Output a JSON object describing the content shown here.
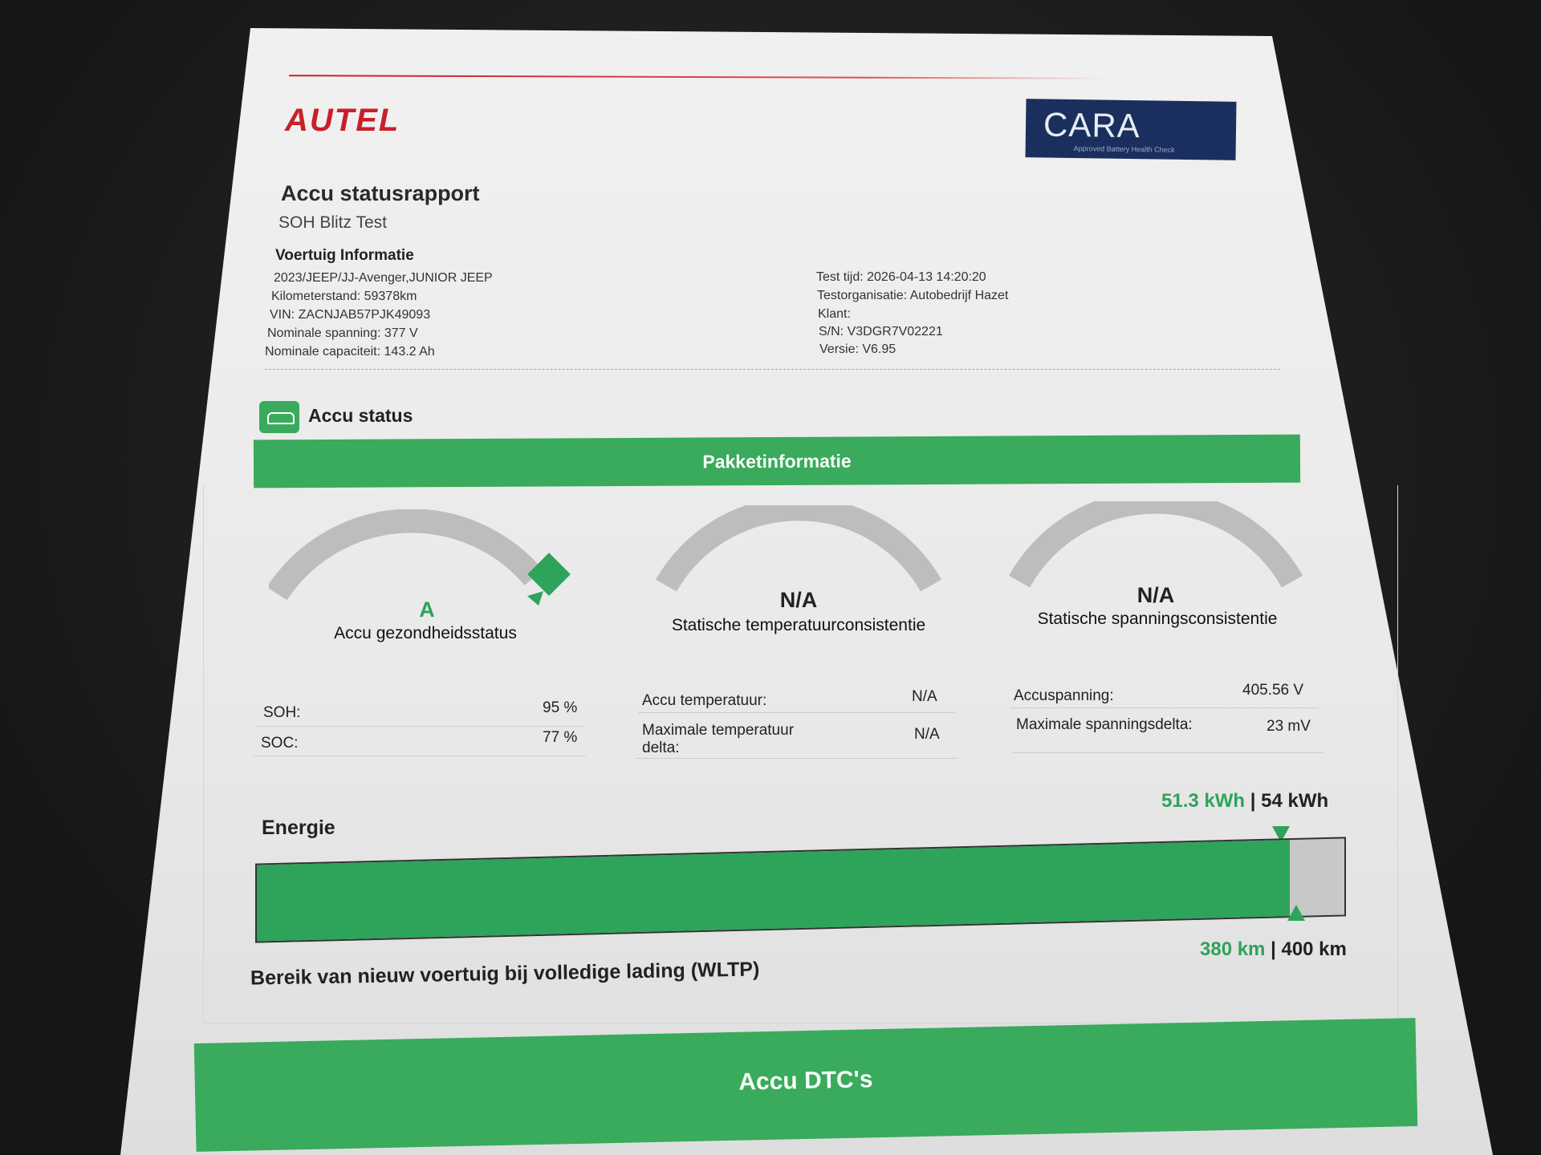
{
  "header": {
    "brand": "AUTEL",
    "badge_brand": "CARA",
    "badge_tagline": "Approved Battery Health Check",
    "brand_color": "#c8202a",
    "badge_color": "#1b2f5e"
  },
  "report": {
    "title": "Accu statusrapport",
    "subtitle": "SOH Blitz Test"
  },
  "vehicle": {
    "section_title": "Voertuig Informatie",
    "left": [
      "2023/JEEP/JJ-Avenger,JUNIOR JEEP",
      "Kilometerstand: 59378km",
      "VIN: ZACNJAB57PJK49093",
      "Nominale spanning: 377 V",
      "Nominale capaciteit: 143.2 Ah"
    ],
    "right": [
      "Test tijd: 2026-04-13 14:20:20",
      "Testorganisatie: Autobedrijf Hazet",
      "Klant:",
      "S/N: V3DGR7V02221",
      "Versie: V6.95"
    ]
  },
  "status": {
    "section_title": "Accu status",
    "icon": "car-battery-icon",
    "accent": "#3aaa5c",
    "package_header": "Pakketinformatie",
    "gauges": [
      {
        "value": "A",
        "label": "Accu gezondheidsstatus"
      },
      {
        "value": "N/A",
        "label": "Statische temperatuurconsistentie"
      },
      {
        "value": "N/A",
        "label": "Statische spanningsconsistentie"
      }
    ],
    "rows": [
      [
        {
          "k": "SOH:",
          "v": "95 %"
        },
        {
          "k": "SOC:",
          "v": "77 %"
        }
      ],
      [
        {
          "k": "Accu temperatuur:",
          "v": "N/A"
        },
        {
          "k": "Maximale temperatuur delta:",
          "v": "N/A"
        }
      ],
      [
        {
          "k": "Accuspanning:",
          "v": "405.56 V"
        },
        {
          "k": "Maximale spanningsdelta:",
          "v": "23 mV"
        }
      ]
    ],
    "energy": {
      "label": "Energie",
      "current": "51.3 kWh",
      "separator": "|",
      "total": "54 kWh",
      "fill_percent": 95
    },
    "range": {
      "label": "Bereik van nieuw voertuig bij volledige lading (WLTP)",
      "current": "380 km",
      "separator": "|",
      "total": "400 km"
    }
  },
  "dtc": {
    "header": "Accu DTC's"
  }
}
